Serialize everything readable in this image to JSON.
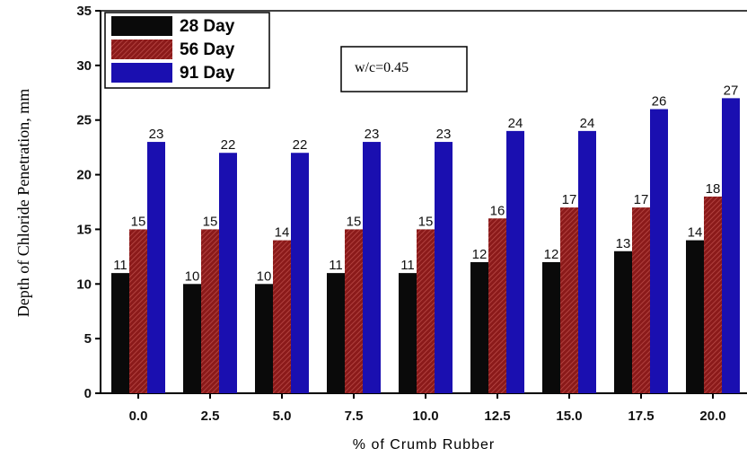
{
  "chart_data": {
    "type": "bar",
    "title": "",
    "xlabel": "% of Crumb Rubber",
    "ylabel": "Depth of Chloride Penetration, mm",
    "categories": [
      "0.0",
      "2.5",
      "5.0",
      "7.5",
      "10.0",
      "12.5",
      "15.0",
      "17.5",
      "20.0"
    ],
    "series": [
      {
        "name": "28 Day",
        "color": "#0a0a0a",
        "values": [
          11,
          10,
          10,
          11,
          11,
          12,
          12,
          13,
          14
        ]
      },
      {
        "name": "56 Day",
        "color": "#8b1a1a",
        "values": [
          15,
          15,
          14,
          15,
          15,
          16,
          17,
          17,
          18
        ]
      },
      {
        "name": "91 Day",
        "color": "#1a0fb0",
        "values": [
          23,
          22,
          22,
          23,
          23,
          24,
          24,
          26,
          27
        ]
      }
    ],
    "ylim": [
      0,
      35
    ],
    "yticks": [
      0,
      5,
      10,
      15,
      20,
      25,
      30,
      35
    ],
    "grid": false,
    "legend_position": "top-left",
    "annotation": "w/c=0.45"
  }
}
